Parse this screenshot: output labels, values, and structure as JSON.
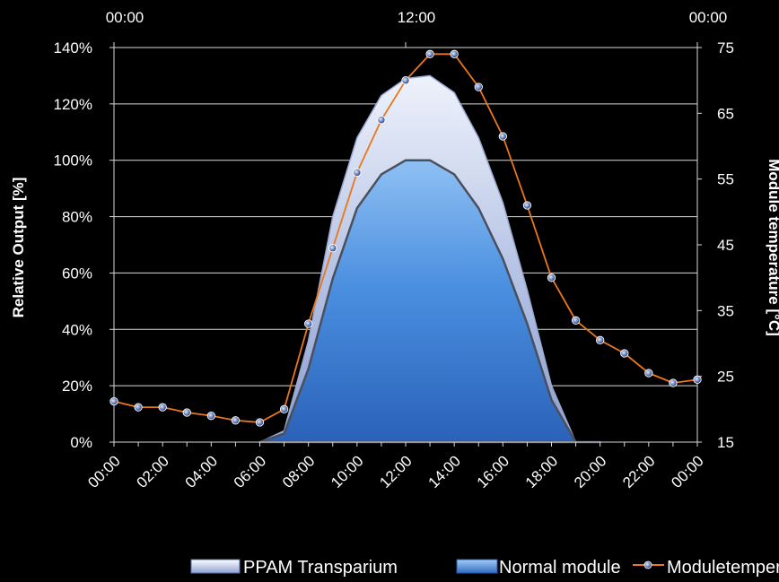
{
  "chart_data": {
    "type": "area",
    "ylabel": "Relative Output [%]",
    "y2label": "Module temperature [°C]",
    "ylim": [
      0,
      140
    ],
    "y_ticks": [
      "0%",
      "20%",
      "40%",
      "60%",
      "80%",
      "100%",
      "120%",
      "140%"
    ],
    "y_tick_values": [
      0,
      20,
      40,
      60,
      80,
      100,
      120,
      140
    ],
    "y2lim": [
      15,
      75
    ],
    "y2_ticks": [
      "15",
      "25",
      "35",
      "45",
      "55",
      "65",
      "75"
    ],
    "y2_tick_values": [
      15,
      25,
      35,
      45,
      55,
      65,
      75
    ],
    "x_ticks": [
      "00:00",
      "02:00",
      "04:00",
      "06:00",
      "08:00",
      "10:00",
      "12:00",
      "14:00",
      "16:00",
      "18:00",
      "20:00",
      "22:00",
      "00:00"
    ],
    "x_hours": [
      0,
      2,
      4,
      6,
      8,
      10,
      12,
      14,
      16,
      18,
      20,
      22,
      24
    ],
    "top_x_ticks": [
      "00:00",
      "12:00",
      "00:00"
    ],
    "top_x_hours": [
      0,
      12,
      24
    ],
    "grid": true,
    "legend_position": "bottom",
    "series": [
      {
        "name": "PPAM Transparium",
        "kind": "area",
        "x": [
          6,
          7,
          8,
          9,
          10,
          11,
          12,
          13,
          14,
          15,
          16,
          17,
          18,
          19,
          20
        ],
        "values": [
          0,
          4,
          36,
          80,
          108,
          123,
          129,
          130,
          124,
          108,
          85,
          54,
          20,
          0,
          0
        ]
      },
      {
        "name": "Normal module",
        "kind": "area",
        "x": [
          6,
          7,
          8,
          9,
          10,
          11,
          12,
          13,
          14,
          15,
          16,
          17,
          18,
          19,
          20
        ],
        "values": [
          0,
          3,
          26,
          58,
          83,
          95,
          100,
          100,
          95,
          83,
          65,
          42,
          15,
          0,
          0
        ]
      },
      {
        "name": "Moduletemperature",
        "kind": "line",
        "axis": "right",
        "x": [
          0,
          1,
          2,
          3,
          4,
          5,
          6,
          7,
          8,
          9,
          10,
          11,
          12,
          13,
          14,
          15,
          16,
          17,
          18,
          19,
          20,
          21,
          22,
          23,
          24
        ],
        "values": [
          21.2,
          20.3,
          20.3,
          19.5,
          19.0,
          18.3,
          18.0,
          20.0,
          33.0,
          44.5,
          56.0,
          64.0,
          70.0,
          74.0,
          74.0,
          69.0,
          61.5,
          51.0,
          40.0,
          33.5,
          30.5,
          28.5,
          25.5,
          24.0,
          24.5
        ]
      }
    ]
  }
}
